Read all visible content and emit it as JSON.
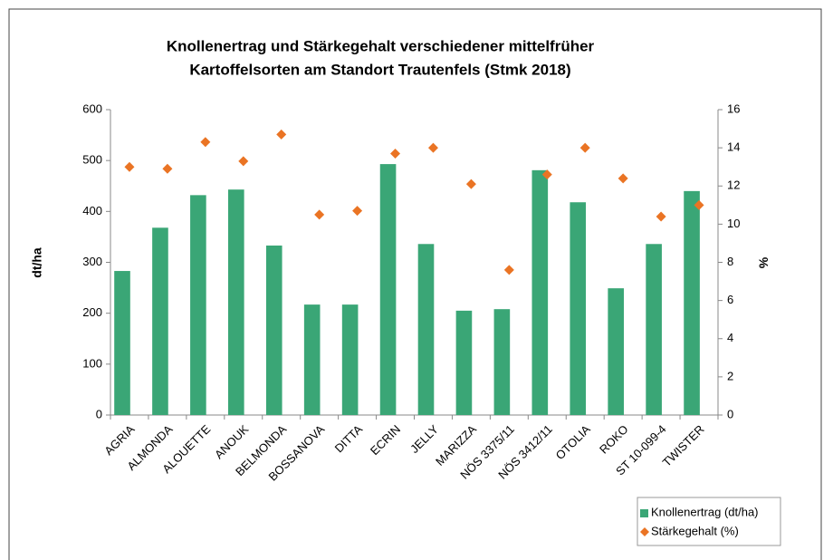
{
  "chart_data": {
    "type": "bar",
    "title": "Knollenertrag und Stärkegehalt verschiedener mittelfrüher",
    "subtitle": "Kartoffelsorten am Standort Trautenfels (Stmk 2018)",
    "y_label": "dt/ha",
    "y2_label": "%",
    "categories": [
      "AGRIA",
      "ALMONDA",
      "ALOUETTE",
      "ANOUK",
      "BELMONDA",
      "BOSSANOVA",
      "DITTA",
      "ECRIN",
      "JELLY",
      "MARIZZA",
      "NÖS 3375/11",
      "NÖS 3412/11",
      "OTOLIA",
      "ROKO",
      "ST 10-099-4",
      "TWISTER"
    ],
    "series": [
      {
        "name": "Knollenertrag (dt/ha)",
        "color": "#3aa676",
        "values": [
          283,
          368,
          432,
          443,
          333,
          217,
          217,
          493,
          336,
          205,
          208,
          481,
          418,
          249,
          336,
          440
        ]
      },
      {
        "name": "Stärkegehalt (%)",
        "color": "#ea7424",
        "axis": "y2",
        "values": [
          13.0,
          12.9,
          14.3,
          13.3,
          14.7,
          10.5,
          10.7,
          13.7,
          14.0,
          12.1,
          7.6,
          12.6,
          14.0,
          12.4,
          10.4,
          11.0
        ]
      }
    ],
    "ylim": [
      0,
      600
    ],
    "yticks": [
      0,
      100,
      200,
      300,
      400,
      500,
      600
    ],
    "y2lim": [
      0,
      16
    ],
    "y2ticks": [
      0,
      2,
      4,
      6,
      8,
      10,
      12,
      14,
      16
    ],
    "grid": false,
    "legend": "bottom-right"
  }
}
